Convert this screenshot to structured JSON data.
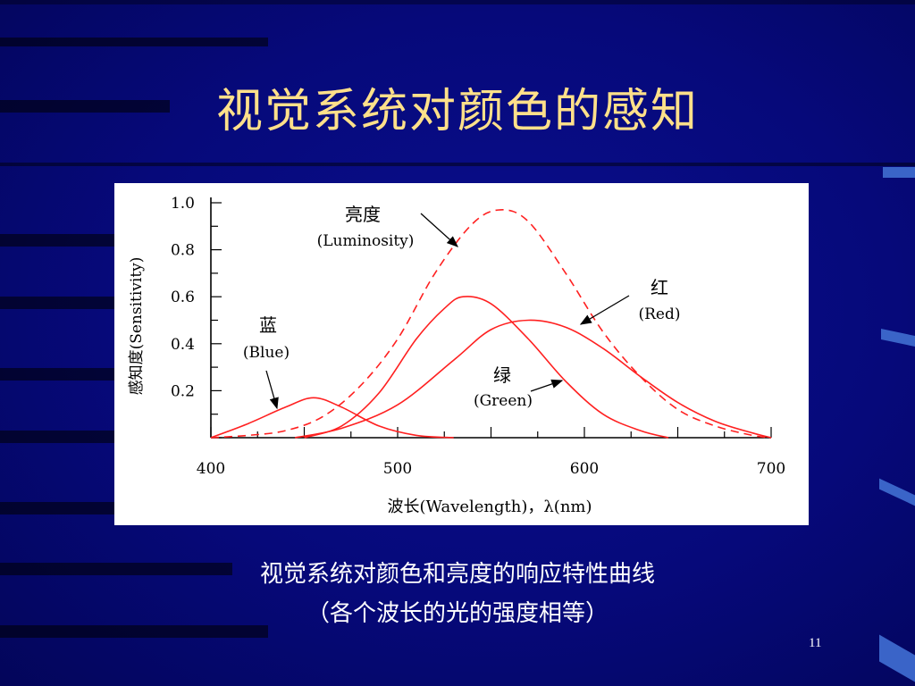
{
  "slide": {
    "title": "视觉系统对颜色的感知",
    "caption_line1": "视觉系统对颜色和亮度的响应特性曲线",
    "caption_line2": "（各个波长的光的强度相等）",
    "page_number": "11"
  },
  "chart_data": {
    "type": "line",
    "xlabel": "波长(Wavelength)，λ(nm)",
    "ylabel": "感知度(Sensitivity)",
    "xlim": [
      400,
      700
    ],
    "ylim": [
      0,
      1.0
    ],
    "x_ticks": [
      "400",
      "500",
      "600",
      "700"
    ],
    "y_ticks": [
      "1.0",
      "0.8",
      "0.6",
      "0.4",
      "0.2"
    ],
    "line_color": "#ff2020",
    "series": [
      {
        "name": "亮度 (Luminosity)",
        "style": "dashed",
        "x": [
          400,
          420,
          440,
          460,
          480,
          500,
          520,
          540,
          555,
          570,
          590,
          610,
          630,
          650,
          670,
          690,
          700
        ],
        "y": [
          0.0,
          0.01,
          0.03,
          0.09,
          0.22,
          0.42,
          0.7,
          0.91,
          0.97,
          0.92,
          0.7,
          0.45,
          0.26,
          0.12,
          0.05,
          0.01,
          0.0
        ]
      },
      {
        "name": "蓝 (Blue)",
        "style": "solid",
        "x": [
          400,
          420,
          440,
          455,
          470,
          490,
          510,
          530
        ],
        "y": [
          0.0,
          0.06,
          0.13,
          0.17,
          0.13,
          0.05,
          0.01,
          0.0
        ]
      },
      {
        "name": "绿 (Green)",
        "style": "solid",
        "x": [
          450,
          470,
          490,
          510,
          525,
          535,
          550,
          570,
          590,
          610,
          630,
          645
        ],
        "y": [
          0.0,
          0.05,
          0.19,
          0.42,
          0.55,
          0.6,
          0.57,
          0.42,
          0.24,
          0.1,
          0.03,
          0.0
        ]
      },
      {
        "name": "红 (Red)",
        "style": "solid",
        "x": [
          445,
          470,
          500,
          530,
          550,
          570,
          590,
          610,
          630,
          650,
          670,
          690,
          700
        ],
        "y": [
          0.0,
          0.04,
          0.14,
          0.33,
          0.46,
          0.5,
          0.47,
          0.38,
          0.26,
          0.15,
          0.07,
          0.02,
          0.0
        ]
      }
    ],
    "annotations": [
      {
        "label_cn": "亮度",
        "label_en": "(Luminosity)"
      },
      {
        "label_cn": "蓝",
        "label_en": "(Blue)"
      },
      {
        "label_cn": "绿",
        "label_en": "(Green)"
      },
      {
        "label_cn": "红",
        "label_en": "(Red)"
      }
    ]
  }
}
